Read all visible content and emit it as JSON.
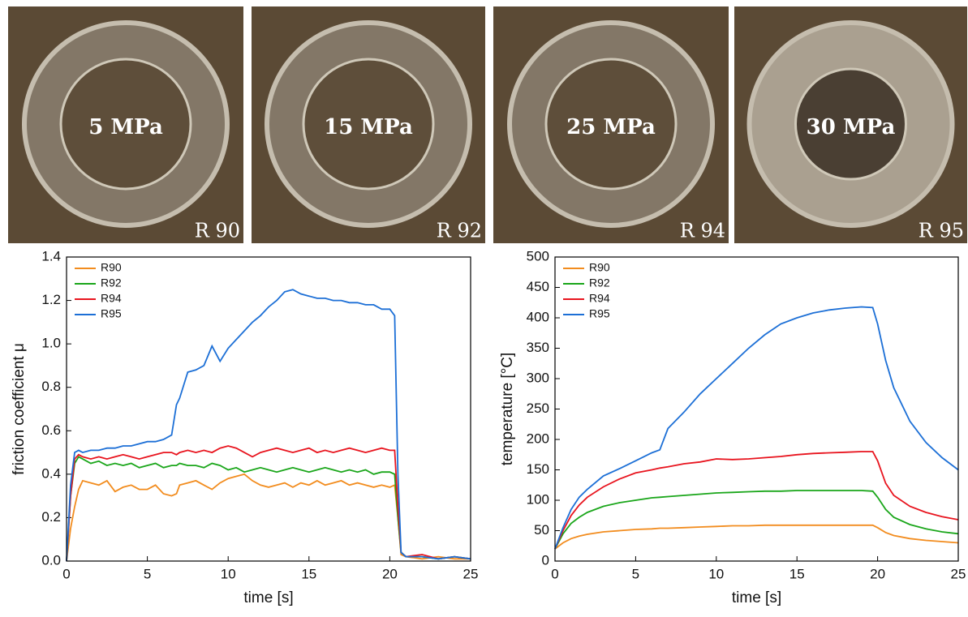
{
  "photos": [
    {
      "pressure": "5 MPa",
      "sample": "R 90"
    },
    {
      "pressure": "15 MPa",
      "sample": "R 92"
    },
    {
      "pressure": "25 MPa",
      "sample": "R 94"
    },
    {
      "pressure": "30 MPa",
      "sample": "R 95"
    }
  ],
  "chart_data": [
    {
      "type": "line",
      "xlabel": "time [s]",
      "ylabel": "friction coefficient μ",
      "legend": "top-left",
      "x": [
        0,
        0.25,
        0.5,
        0.75,
        1,
        1.5,
        2,
        2.5,
        3,
        3.5,
        4,
        4.5,
        5,
        5.5,
        6,
        6.5,
        6.8,
        7,
        7.5,
        8,
        8.5,
        9,
        9.5,
        10,
        10.5,
        11,
        11.5,
        12,
        12.5,
        13,
        13.5,
        14,
        14.5,
        15,
        15.5,
        16,
        16.5,
        17,
        17.5,
        18,
        18.5,
        19,
        19.5,
        20,
        20.3,
        20.5,
        20.7,
        21,
        22,
        23,
        24,
        25
      ],
      "series": [
        {
          "name": "R90",
          "color": "#f28c1e",
          "values": [
            0,
            0.15,
            0.25,
            0.33,
            0.37,
            0.36,
            0.35,
            0.37,
            0.32,
            0.34,
            0.35,
            0.33,
            0.33,
            0.35,
            0.31,
            0.3,
            0.31,
            0.35,
            0.36,
            0.37,
            0.35,
            0.33,
            0.36,
            0.38,
            0.39,
            0.4,
            0.37,
            0.35,
            0.34,
            0.35,
            0.36,
            0.34,
            0.36,
            0.35,
            0.37,
            0.35,
            0.36,
            0.37,
            0.35,
            0.36,
            0.35,
            0.34,
            0.35,
            0.34,
            0.35,
            0.2,
            0.03,
            0.02,
            0.01,
            0.02,
            0.01,
            0.01
          ]
        },
        {
          "name": "R92",
          "color": "#1aa61a",
          "values": [
            0,
            0.3,
            0.45,
            0.48,
            0.47,
            0.45,
            0.46,
            0.44,
            0.45,
            0.44,
            0.45,
            0.43,
            0.44,
            0.45,
            0.43,
            0.44,
            0.44,
            0.45,
            0.44,
            0.44,
            0.43,
            0.45,
            0.44,
            0.42,
            0.43,
            0.41,
            0.42,
            0.43,
            0.42,
            0.41,
            0.42,
            0.43,
            0.42,
            0.41,
            0.42,
            0.43,
            0.42,
            0.41,
            0.42,
            0.41,
            0.42,
            0.4,
            0.41,
            0.41,
            0.4,
            0.2,
            0.04,
            0.02,
            0.02,
            0.01,
            0.02,
            0.01
          ]
        },
        {
          "name": "R94",
          "color": "#e8141e",
          "values": [
            0,
            0.3,
            0.47,
            0.49,
            0.48,
            0.47,
            0.48,
            0.47,
            0.48,
            0.49,
            0.48,
            0.47,
            0.48,
            0.49,
            0.5,
            0.5,
            0.49,
            0.5,
            0.51,
            0.5,
            0.51,
            0.5,
            0.52,
            0.53,
            0.52,
            0.5,
            0.48,
            0.5,
            0.51,
            0.52,
            0.51,
            0.5,
            0.51,
            0.52,
            0.5,
            0.51,
            0.5,
            0.51,
            0.52,
            0.51,
            0.5,
            0.51,
            0.52,
            0.51,
            0.51,
            0.25,
            0.04,
            0.02,
            0.03,
            0.01,
            0.02,
            0.01
          ]
        },
        {
          "name": "R95",
          "color": "#1c6fd6",
          "values": [
            0,
            0.35,
            0.5,
            0.51,
            0.5,
            0.51,
            0.51,
            0.52,
            0.52,
            0.53,
            0.53,
            0.54,
            0.55,
            0.55,
            0.56,
            0.58,
            0.72,
            0.75,
            0.87,
            0.88,
            0.9,
            0.99,
            0.92,
            0.98,
            1.02,
            1.06,
            1.1,
            1.13,
            1.17,
            1.2,
            1.24,
            1.25,
            1.23,
            1.22,
            1.21,
            1.21,
            1.2,
            1.2,
            1.19,
            1.19,
            1.18,
            1.18,
            1.16,
            1.16,
            1.13,
            0.4,
            0.04,
            0.02,
            0.02,
            0.01,
            0.02,
            0.01
          ]
        }
      ],
      "xlim": [
        0,
        25
      ],
      "xticks": [
        0,
        5,
        10,
        15,
        20,
        25
      ],
      "ylim": [
        0,
        1.4
      ],
      "yticks": [
        {
          "value": 0,
          "label": "0.0"
        },
        0.2,
        0.4,
        0.6,
        0.8,
        {
          "value": 1,
          "label": "1.0"
        },
        1.2,
        1.4
      ]
    },
    {
      "type": "line",
      "xlabel": "time [s]",
      "ylabel": "temperature [°C]",
      "legend": "top-left",
      "x": [
        0,
        0.5,
        1,
        1.5,
        2,
        3,
        4,
        5,
        6,
        6.5,
        7,
        8,
        9,
        10,
        11,
        12,
        13,
        14,
        15,
        16,
        17,
        18,
        19,
        19.7,
        20,
        20.5,
        21,
        22,
        23,
        24,
        25
      ],
      "series": [
        {
          "name": "R90",
          "color": "#f28c1e",
          "values": [
            20,
            30,
            37,
            41,
            44,
            48,
            50,
            52,
            53,
            54,
            54,
            55,
            56,
            57,
            58,
            58,
            59,
            59,
            59,
            59,
            59,
            59,
            59,
            59,
            55,
            47,
            42,
            37,
            34,
            32,
            30
          ]
        },
        {
          "name": "R92",
          "color": "#1aa61a",
          "values": [
            20,
            45,
            62,
            72,
            80,
            90,
            96,
            100,
            104,
            105,
            106,
            108,
            110,
            112,
            113,
            114,
            115,
            115,
            116,
            116,
            116,
            116,
            116,
            115,
            105,
            85,
            72,
            60,
            53,
            48,
            45
          ]
        },
        {
          "name": "R94",
          "color": "#e8141e",
          "values": [
            20,
            50,
            75,
            92,
            105,
            122,
            135,
            145,
            150,
            153,
            155,
            160,
            163,
            168,
            167,
            168,
            170,
            172,
            175,
            177,
            178,
            179,
            180,
            180,
            165,
            128,
            108,
            90,
            80,
            73,
            68
          ]
        },
        {
          "name": "R95",
          "color": "#1c6fd6",
          "values": [
            20,
            55,
            85,
            105,
            118,
            140,
            152,
            165,
            178,
            183,
            218,
            245,
            275,
            300,
            325,
            350,
            372,
            390,
            400,
            408,
            413,
            416,
            418,
            417,
            390,
            330,
            285,
            230,
            195,
            170,
            150
          ]
        }
      ],
      "xlim": [
        0,
        25
      ],
      "xticks": [
        0,
        5,
        10,
        15,
        20,
        25
      ],
      "ylim": [
        0,
        500
      ],
      "yticks": [
        0,
        50,
        100,
        150,
        200,
        250,
        300,
        350,
        400,
        450,
        500
      ]
    }
  ]
}
